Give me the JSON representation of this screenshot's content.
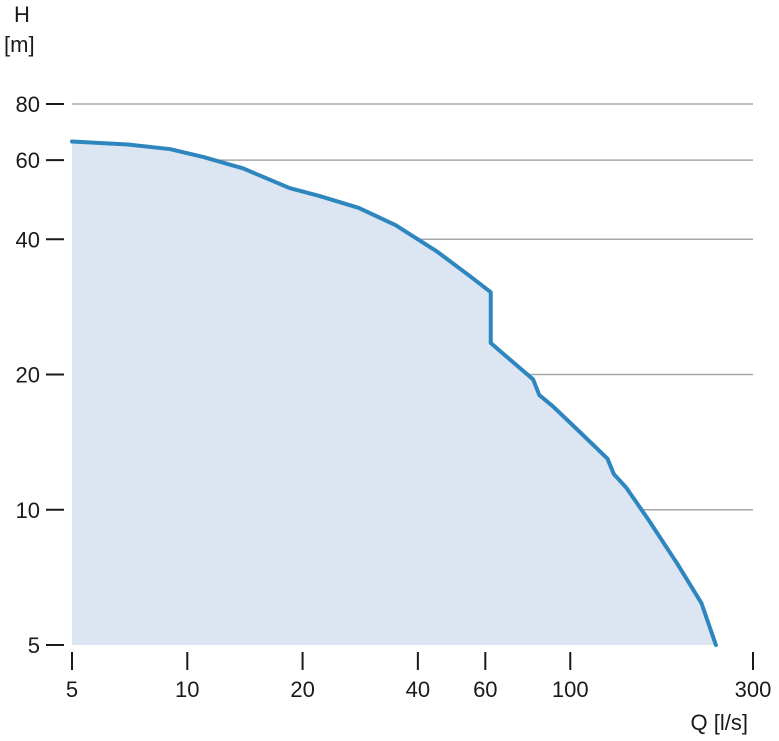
{
  "chart_data": {
    "type": "area",
    "title": "",
    "xlabel": "Q [l/s]",
    "ylabel_line1": "H",
    "ylabel_line2": "[m]",
    "x_scale": "log",
    "y_scale": "log",
    "xlim": [
      5,
      300
    ],
    "ylim": [
      5,
      80
    ],
    "x_ticks": [
      5,
      10,
      20,
      40,
      60,
      100,
      300
    ],
    "y_ticks": [
      5,
      10,
      20,
      40,
      60,
      80
    ],
    "y_gridlines": [
      10,
      20,
      40,
      60,
      80
    ],
    "grid": true,
    "legend": "none",
    "colors": {
      "line": "#2e86bf",
      "fill": "#dce5f2",
      "grid": "#a8a8a8",
      "axis": "#1a1a1a"
    },
    "series": [
      {
        "points": [
          [
            5.0,
            66.0
          ],
          [
            7.0,
            65.0
          ],
          [
            9.0,
            63.5
          ],
          [
            11.0,
            61.0
          ],
          [
            14.0,
            57.5
          ],
          [
            18.5,
            52.0
          ],
          [
            22.0,
            50.0
          ],
          [
            28.0,
            47.0
          ],
          [
            35.0,
            43.0
          ],
          [
            45.0,
            37.5
          ],
          [
            55.0,
            33.0
          ],
          [
            62.0,
            30.5
          ],
          [
            62.0,
            23.5
          ],
          [
            70.0,
            21.5
          ],
          [
            80.0,
            19.5
          ],
          [
            83.0,
            18.0
          ],
          [
            90.0,
            17.0
          ],
          [
            105.0,
            15.0
          ],
          [
            125.0,
            13.0
          ],
          [
            130.0,
            12.0
          ],
          [
            140.0,
            11.2
          ],
          [
            160.0,
            9.5
          ],
          [
            190.0,
            7.6
          ],
          [
            220.0,
            6.2
          ],
          [
            240.0,
            5.0
          ]
        ]
      }
    ]
  }
}
